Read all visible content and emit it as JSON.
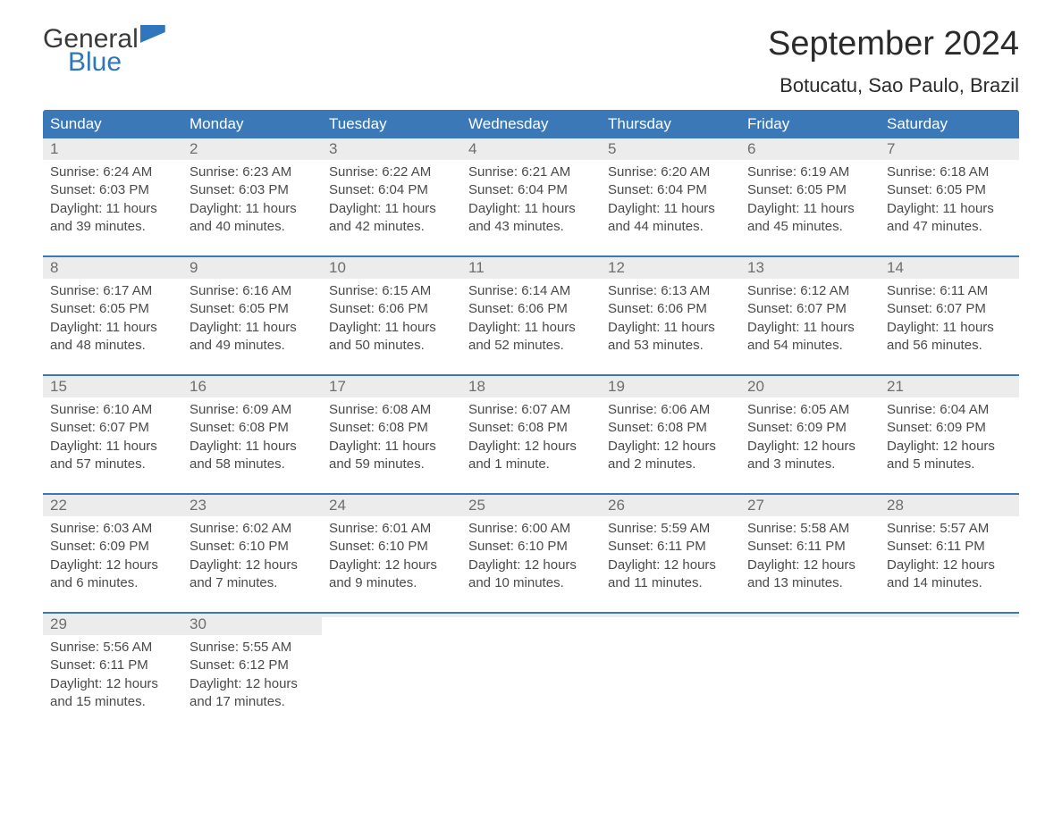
{
  "brand": {
    "line1": "General",
    "line2": "Blue"
  },
  "title": "September 2024",
  "location": "Botucatu, Sao Paulo, Brazil",
  "colors": {
    "header_bg": "#3b78b8",
    "header_text": "#ffffff",
    "daynum_bg": "#ececec",
    "daynum_text": "#6e6e6e",
    "body_text": "#4a4a4a",
    "rule": "#3b78b8",
    "page_bg": "#ffffff",
    "brand_blue": "#2f76bc"
  },
  "typography": {
    "title_fontsize_pt": 29,
    "location_fontsize_pt": 16,
    "dow_fontsize_pt": 13,
    "daynum_fontsize_pt": 13,
    "body_fontsize_pt": 11,
    "font_family": "Arial"
  },
  "days_of_week": [
    "Sunday",
    "Monday",
    "Tuesday",
    "Wednesday",
    "Thursday",
    "Friday",
    "Saturday"
  ],
  "weeks": [
    [
      {
        "n": "1",
        "sunrise": "Sunrise: 6:24 AM",
        "sunset": "Sunset: 6:03 PM",
        "dl1": "Daylight: 11 hours",
        "dl2": "and 39 minutes."
      },
      {
        "n": "2",
        "sunrise": "Sunrise: 6:23 AM",
        "sunset": "Sunset: 6:03 PM",
        "dl1": "Daylight: 11 hours",
        "dl2": "and 40 minutes."
      },
      {
        "n": "3",
        "sunrise": "Sunrise: 6:22 AM",
        "sunset": "Sunset: 6:04 PM",
        "dl1": "Daylight: 11 hours",
        "dl2": "and 42 minutes."
      },
      {
        "n": "4",
        "sunrise": "Sunrise: 6:21 AM",
        "sunset": "Sunset: 6:04 PM",
        "dl1": "Daylight: 11 hours",
        "dl2": "and 43 minutes."
      },
      {
        "n": "5",
        "sunrise": "Sunrise: 6:20 AM",
        "sunset": "Sunset: 6:04 PM",
        "dl1": "Daylight: 11 hours",
        "dl2": "and 44 minutes."
      },
      {
        "n": "6",
        "sunrise": "Sunrise: 6:19 AM",
        "sunset": "Sunset: 6:05 PM",
        "dl1": "Daylight: 11 hours",
        "dl2": "and 45 minutes."
      },
      {
        "n": "7",
        "sunrise": "Sunrise: 6:18 AM",
        "sunset": "Sunset: 6:05 PM",
        "dl1": "Daylight: 11 hours",
        "dl2": "and 47 minutes."
      }
    ],
    [
      {
        "n": "8",
        "sunrise": "Sunrise: 6:17 AM",
        "sunset": "Sunset: 6:05 PM",
        "dl1": "Daylight: 11 hours",
        "dl2": "and 48 minutes."
      },
      {
        "n": "9",
        "sunrise": "Sunrise: 6:16 AM",
        "sunset": "Sunset: 6:05 PM",
        "dl1": "Daylight: 11 hours",
        "dl2": "and 49 minutes."
      },
      {
        "n": "10",
        "sunrise": "Sunrise: 6:15 AM",
        "sunset": "Sunset: 6:06 PM",
        "dl1": "Daylight: 11 hours",
        "dl2": "and 50 minutes."
      },
      {
        "n": "11",
        "sunrise": "Sunrise: 6:14 AM",
        "sunset": "Sunset: 6:06 PM",
        "dl1": "Daylight: 11 hours",
        "dl2": "and 52 minutes."
      },
      {
        "n": "12",
        "sunrise": "Sunrise: 6:13 AM",
        "sunset": "Sunset: 6:06 PM",
        "dl1": "Daylight: 11 hours",
        "dl2": "and 53 minutes."
      },
      {
        "n": "13",
        "sunrise": "Sunrise: 6:12 AM",
        "sunset": "Sunset: 6:07 PM",
        "dl1": "Daylight: 11 hours",
        "dl2": "and 54 minutes."
      },
      {
        "n": "14",
        "sunrise": "Sunrise: 6:11 AM",
        "sunset": "Sunset: 6:07 PM",
        "dl1": "Daylight: 11 hours",
        "dl2": "and 56 minutes."
      }
    ],
    [
      {
        "n": "15",
        "sunrise": "Sunrise: 6:10 AM",
        "sunset": "Sunset: 6:07 PM",
        "dl1": "Daylight: 11 hours",
        "dl2": "and 57 minutes."
      },
      {
        "n": "16",
        "sunrise": "Sunrise: 6:09 AM",
        "sunset": "Sunset: 6:08 PM",
        "dl1": "Daylight: 11 hours",
        "dl2": "and 58 minutes."
      },
      {
        "n": "17",
        "sunrise": "Sunrise: 6:08 AM",
        "sunset": "Sunset: 6:08 PM",
        "dl1": "Daylight: 11 hours",
        "dl2": "and 59 minutes."
      },
      {
        "n": "18",
        "sunrise": "Sunrise: 6:07 AM",
        "sunset": "Sunset: 6:08 PM",
        "dl1": "Daylight: 12 hours",
        "dl2": "and 1 minute."
      },
      {
        "n": "19",
        "sunrise": "Sunrise: 6:06 AM",
        "sunset": "Sunset: 6:08 PM",
        "dl1": "Daylight: 12 hours",
        "dl2": "and 2 minutes."
      },
      {
        "n": "20",
        "sunrise": "Sunrise: 6:05 AM",
        "sunset": "Sunset: 6:09 PM",
        "dl1": "Daylight: 12 hours",
        "dl2": "and 3 minutes."
      },
      {
        "n": "21",
        "sunrise": "Sunrise: 6:04 AM",
        "sunset": "Sunset: 6:09 PM",
        "dl1": "Daylight: 12 hours",
        "dl2": "and 5 minutes."
      }
    ],
    [
      {
        "n": "22",
        "sunrise": "Sunrise: 6:03 AM",
        "sunset": "Sunset: 6:09 PM",
        "dl1": "Daylight: 12 hours",
        "dl2": "and 6 minutes."
      },
      {
        "n": "23",
        "sunrise": "Sunrise: 6:02 AM",
        "sunset": "Sunset: 6:10 PM",
        "dl1": "Daylight: 12 hours",
        "dl2": "and 7 minutes."
      },
      {
        "n": "24",
        "sunrise": "Sunrise: 6:01 AM",
        "sunset": "Sunset: 6:10 PM",
        "dl1": "Daylight: 12 hours",
        "dl2": "and 9 minutes."
      },
      {
        "n": "25",
        "sunrise": "Sunrise: 6:00 AM",
        "sunset": "Sunset: 6:10 PM",
        "dl1": "Daylight: 12 hours",
        "dl2": "and 10 minutes."
      },
      {
        "n": "26",
        "sunrise": "Sunrise: 5:59 AM",
        "sunset": "Sunset: 6:11 PM",
        "dl1": "Daylight: 12 hours",
        "dl2": "and 11 minutes."
      },
      {
        "n": "27",
        "sunrise": "Sunrise: 5:58 AM",
        "sunset": "Sunset: 6:11 PM",
        "dl1": "Daylight: 12 hours",
        "dl2": "and 13 minutes."
      },
      {
        "n": "28",
        "sunrise": "Sunrise: 5:57 AM",
        "sunset": "Sunset: 6:11 PM",
        "dl1": "Daylight: 12 hours",
        "dl2": "and 14 minutes."
      }
    ],
    [
      {
        "n": "29",
        "sunrise": "Sunrise: 5:56 AM",
        "sunset": "Sunset: 6:11 PM",
        "dl1": "Daylight: 12 hours",
        "dl2": "and 15 minutes."
      },
      {
        "n": "30",
        "sunrise": "Sunrise: 5:55 AM",
        "sunset": "Sunset: 6:12 PM",
        "dl1": "Daylight: 12 hours",
        "dl2": "and 17 minutes."
      },
      {
        "empty": true
      },
      {
        "empty": true
      },
      {
        "empty": true
      },
      {
        "empty": true
      },
      {
        "empty": true
      }
    ]
  ]
}
